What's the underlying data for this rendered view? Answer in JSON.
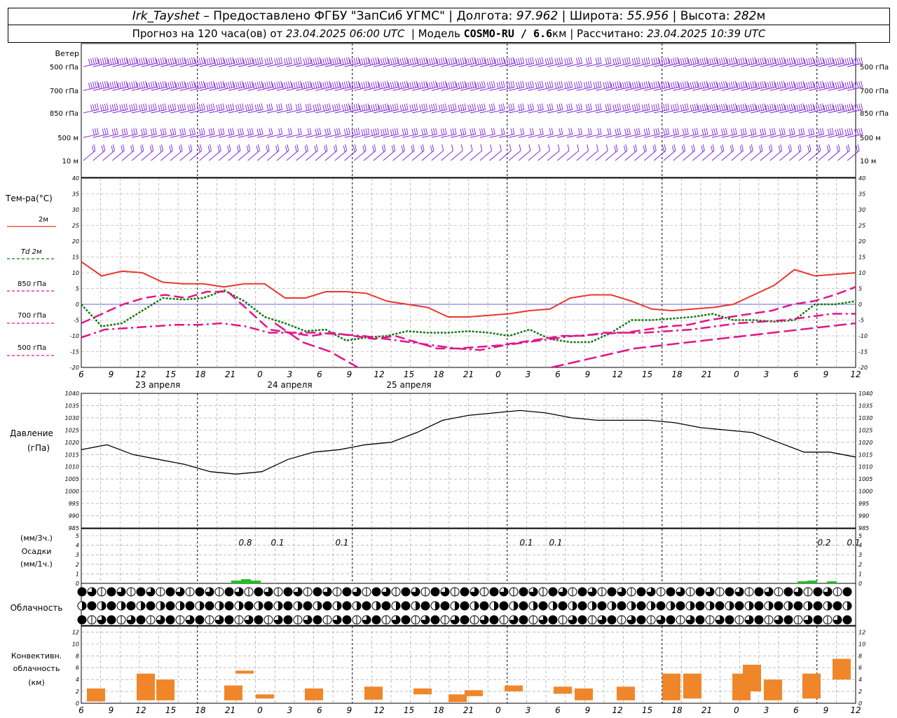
{
  "header": {
    "station": "Irk_Tayshet",
    "dash": "–",
    "provider": "Предоставлено ФГБУ \"ЗапСиб УГМС\"",
    "lon_label": "Долгота:",
    "lon": "97.962",
    "lat_label": "Широта:",
    "lat": "55.956",
    "alt_label": "Высота:",
    "alt": "282",
    "alt_unit": "м",
    "forecast_prefix": "Прогноз на 120 часа(ов) от",
    "forecast_start": "23.04.2025 06:00 UTC",
    "model_label": "Модель",
    "model": "COSMO-RU / 6.6",
    "model_unit": "км",
    "calc_label": "Рассчитано:",
    "calc_time": "23.04.2025 10:39 UTC"
  },
  "colors": {
    "wind": "#7a1fd6",
    "t2m": "#e8382e",
    "td2m": "#0e7a0e",
    "t850": "#e0168a",
    "t700": "#e0168a",
    "t500": "#e0168a",
    "zero_line": "#3b3bdc",
    "precip_3h": "#22c022",
    "precip_1h": "#1a1aa0",
    "convective": "#f0862a",
    "grid": "#999999"
  },
  "panels": {
    "wind": {
      "title": "Ветер",
      "levels": [
        "500 гПа",
        "700 гПа",
        "850 гПа",
        "500 м",
        "10 м"
      ]
    },
    "temp": {
      "title": "Тем-ра(°С)",
      "legend": [
        "2м",
        "Td 2м",
        "850 гПа",
        "700 гПа",
        "500 гПа"
      ]
    },
    "pressure": {
      "title": "Давление",
      "unit": "(гПа)"
    },
    "precip": {
      "unit_3h": "(мм/3ч.)",
      "title": "Осадки",
      "unit_1h": "(мм/1ч.)"
    },
    "cloud": {
      "title": "Облачность"
    },
    "conv": {
      "title1": "Конвективн.",
      "title2": "облачность",
      "unit": "(км)"
    }
  },
  "chart_data": {
    "type": "line",
    "time_hours_utc": [
      6,
      9,
      12,
      15,
      18,
      21,
      0,
      3,
      6,
      9,
      12,
      15,
      18,
      21,
      0,
      3,
      6,
      9,
      12,
      15,
      18,
      21,
      0,
      3,
      6,
      9,
      12
    ],
    "x_tick_labels": [
      "6",
      "9",
      "12",
      "15",
      "18",
      "21",
      "0",
      "3",
      "6",
      "9",
      "12",
      "15",
      "18",
      "21",
      "0",
      "3",
      "6",
      "9",
      "12",
      "15",
      "18",
      "21",
      "0",
      "3",
      "6",
      "9",
      "12"
    ],
    "date_labels": [
      "23 апреля",
      "24 апреля",
      "25 апреля"
    ],
    "temperature": {
      "ylim": [
        -20,
        40
      ],
      "yticks": [
        -20,
        -15,
        -10,
        -5,
        0,
        5,
        10,
        15,
        20,
        25,
        30,
        35,
        40
      ],
      "series": [
        {
          "name": "2м",
          "values": [
            13.5,
            9,
            10.5,
            10,
            7,
            6.5,
            6.5,
            5.5,
            6.5,
            6.5,
            2,
            2,
            4,
            4,
            3.5,
            1,
            0,
            -1,
            -4,
            -4,
            -3.5,
            -3,
            -2,
            -1.5,
            2,
            3,
            3,
            1,
            -1.5,
            -2,
            -1.5,
            -1,
            0,
            3,
            6,
            11,
            9,
            9.5,
            10
          ]
        },
        {
          "name": "Td 2м",
          "values": [
            0,
            -7,
            -6,
            -2,
            2,
            1.5,
            2,
            4.5,
            1,
            -4,
            -6,
            -8.5,
            -8,
            -11.5,
            -10.5,
            -10,
            -8.5,
            -9,
            -9,
            -8.5,
            -9,
            -10,
            -8,
            -11,
            -12,
            -12,
            -9,
            -5,
            -5,
            -4.5,
            -4,
            -3,
            -5,
            -5,
            -5.5,
            -5,
            0,
            0,
            1
          ]
        },
        {
          "name": "850 гПа",
          "values": [
            -6,
            -3,
            0,
            2,
            3,
            2,
            4,
            4,
            -2,
            -8,
            -9,
            -10,
            -9,
            -10,
            -11,
            -10,
            -12,
            -14,
            -14,
            -13.5,
            -13,
            -12,
            -11,
            -10,
            -10,
            -9,
            -9,
            -8,
            -7,
            -6.5,
            -5,
            -4,
            -3,
            -2,
            0,
            1,
            3,
            5.5
          ]
        },
        {
          "name": "700 гПа",
          "values": [
            -10.5,
            -8,
            -7.5,
            -7,
            -6.5,
            -6.5,
            -6,
            -7,
            -9,
            -9,
            -9,
            -9.5,
            -10,
            -11,
            -12,
            -13,
            -14,
            -14.5,
            -13,
            -12,
            -11,
            -10,
            -9.5,
            -9,
            -9,
            -8.5,
            -8,
            -7,
            -6,
            -5.5,
            -5,
            -4,
            -3,
            -3
          ]
        },
        {
          "name": "500 гПа",
          "values": [
            null,
            null,
            null,
            null,
            null,
            null,
            null,
            -6,
            -12,
            -15,
            -20,
            null,
            null,
            null,
            null,
            null,
            null,
            -20,
            -18,
            -16,
            -14,
            -13,
            -12,
            -11,
            -10,
            -9,
            -8,
            -7,
            -6
          ]
        }
      ]
    },
    "pressure": {
      "ylim": [
        985,
        1040
      ],
      "yticks": [
        985,
        990,
        995,
        1000,
        1005,
        1010,
        1015,
        1020,
        1025,
        1030,
        1035,
        1040
      ],
      "values": [
        1017,
        1019,
        1015,
        1013,
        1011,
        1008,
        1007,
        1008,
        1013,
        1016,
        1017,
        1019,
        1020,
        1024,
        1029,
        1031,
        1032,
        1033,
        1032,
        1030,
        1029,
        1029,
        1029,
        1028,
        1026,
        1025,
        1024,
        1020,
        1016,
        1016,
        1014
      ]
    },
    "precipitation": {
      "ylim": [
        0,
        5
      ],
      "yticks": [
        0,
        1,
        2,
        3,
        4,
        5
      ],
      "labels": [
        "0.8",
        "0.1",
        "0.1",
        "0.1",
        "0.1",
        "0.2",
        "0.1"
      ]
    },
    "convective_cloud": {
      "ylim": [
        0,
        13
      ],
      "yticks": [
        0,
        2,
        4,
        6,
        8,
        10,
        12
      ]
    }
  }
}
